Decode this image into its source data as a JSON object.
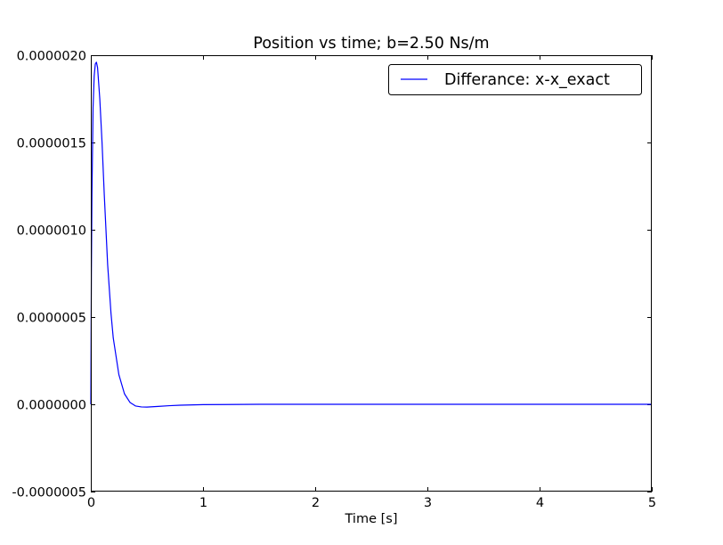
{
  "chart_data": {
    "type": "line",
    "title": "Position vs time; b=2.50 Ns/m",
    "xlabel": "Time [s]",
    "ylabel": "",
    "xlim": [
      0,
      5
    ],
    "ylim": [
      -5e-07,
      2e-06
    ],
    "x_ticks": [
      0,
      1,
      2,
      3,
      4,
      5
    ],
    "x_tick_labels": [
      "0",
      "1",
      "2",
      "3",
      "4",
      "5"
    ],
    "y_ticks": [
      -5e-07,
      0.0,
      5e-07,
      1e-06,
      1.5e-06,
      2e-06
    ],
    "y_tick_labels": [
      "-0.0000005",
      "0.0000000",
      "0.0000005",
      "0.0000010",
      "0.0000015",
      "0.0000020"
    ],
    "grid": false,
    "legend_position": "top-right",
    "series": [
      {
        "name": "Differance: x-x_exact",
        "color": "#0000ff",
        "x": [
          0,
          0.005,
          0.01,
          0.02,
          0.03,
          0.04,
          0.05,
          0.06,
          0.08,
          0.1,
          0.12,
          0.15,
          0.18,
          0.2,
          0.25,
          0.3,
          0.35,
          0.4,
          0.45,
          0.5,
          0.6,
          0.7,
          0.8,
          1.0,
          1.5,
          2.0,
          3.0,
          4.0,
          5.0
        ],
        "y": [
          0,
          7.5e-07,
          1.2e-06,
          1.7e-06,
          1.88e-06,
          1.95e-06,
          1.96e-06,
          1.93e-06,
          1.75e-06,
          1.5e-06,
          1.2e-06,
          8e-07,
          5.2e-07,
          3.8e-07,
          1.7e-07,
          6e-08,
          1e-08,
          -1e-08,
          -1.5e-08,
          -1.6e-08,
          -1.2e-08,
          -8e-09,
          -5e-09,
          -2e-09,
          0,
          0,
          0,
          0,
          0
        ]
      }
    ]
  }
}
